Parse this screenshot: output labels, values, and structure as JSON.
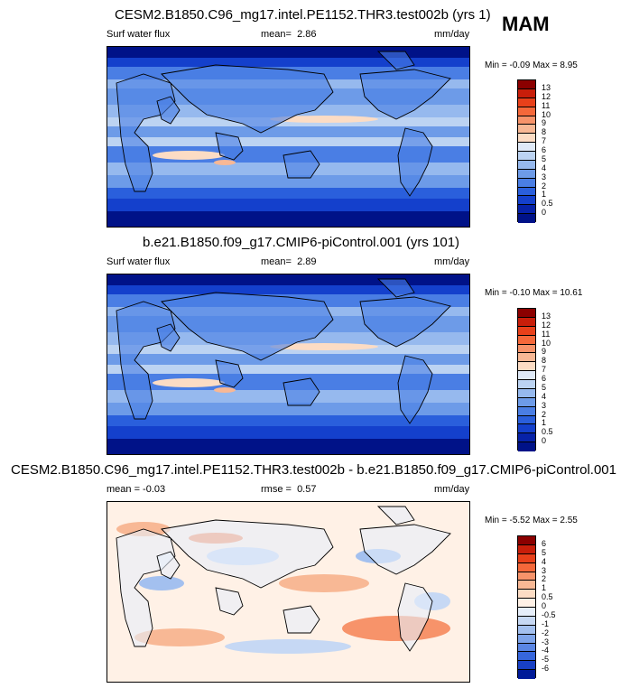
{
  "season": "MAM",
  "panels": [
    {
      "title": "CESM2.B1850.C96_mg17.intel.PE1152.THR3.test002b (yrs 1)",
      "left_label": "Surf water flux",
      "stat_label": "mean=",
      "stat_value": "2.86",
      "units": "mm/day",
      "minmax": "Min = -0.09 Max = 8.95",
      "colorbar": {
        "labels": [
          "13",
          "12",
          "11",
          "10",
          "9",
          "8",
          "7",
          "6",
          "5",
          "4",
          "3",
          "2",
          "1",
          "0.5",
          "0"
        ],
        "colors": [
          "#8b0000",
          "#c81e0a",
          "#e8401a",
          "#f5683a",
          "#f7936a",
          "#f8b895",
          "#fcdcc4",
          "#dfe9f7",
          "#bcd3f2",
          "#96b9ee",
          "#6d9be8",
          "#4a7ee4",
          "#2a5fdc",
          "#1440cc",
          "#0722a8",
          "#001288"
        ]
      },
      "map_style": "flux"
    },
    {
      "title": "b.e21.B1850.f09_g17.CMIP6-piControl.001 (yrs 101)",
      "left_label": "Surf water flux",
      "stat_label": "mean=",
      "stat_value": "2.89",
      "units": "mm/day",
      "minmax": "Min = -0.10 Max = 10.61",
      "colorbar": {
        "labels": [
          "13",
          "12",
          "11",
          "10",
          "9",
          "8",
          "7",
          "6",
          "5",
          "4",
          "3",
          "2",
          "1",
          "0.5",
          "0"
        ],
        "colors": [
          "#8b0000",
          "#c81e0a",
          "#e8401a",
          "#f5683a",
          "#f7936a",
          "#f8b895",
          "#fcdcc4",
          "#dfe9f7",
          "#bcd3f2",
          "#96b9ee",
          "#6d9be8",
          "#4a7ee4",
          "#2a5fdc",
          "#1440cc",
          "#0722a8",
          "#001288"
        ]
      },
      "map_style": "flux"
    },
    {
      "title": "CESM2.B1850.C96_mg17.intel.PE1152.THR3.test002b - b.e21.B1850.f09_g17.CMIP6-piControl.001",
      "left_label": "mean =  -0.03",
      "stat_label": "rmse =",
      "stat_value": "0.57",
      "units": "mm/day",
      "minmax": "Min = -5.52 Max =  2.55",
      "colorbar": {
        "labels": [
          "6",
          "5",
          "4",
          "3",
          "2",
          "1",
          "0.5",
          "0",
          "-0.5",
          "-1",
          "-2",
          "-3",
          "-4",
          "-5",
          "-6"
        ],
        "colors": [
          "#8b0000",
          "#c81e0a",
          "#e8401a",
          "#f5683a",
          "#f7936a",
          "#f8b895",
          "#fcdcc4",
          "#fff1e6",
          "#e6eefa",
          "#c6d8f4",
          "#a3c0ef",
          "#7ea4ea",
          "#5a86e4",
          "#3666dc",
          "#1840c4",
          "#001a98"
        ]
      },
      "map_style": "diff"
    }
  ],
  "chart_data": [
    {
      "type": "heatmap",
      "title": "CESM2.B1850.C96_mg17.intel.PE1152.THR3.test002b (yrs 1)",
      "variable": "Surf water flux",
      "units": "mm/day",
      "mean": 2.86,
      "min": -0.09,
      "max": 8.95,
      "levels": [
        0,
        0.5,
        1,
        2,
        3,
        4,
        5,
        6,
        7,
        8,
        9,
        10,
        11,
        12,
        13
      ]
    },
    {
      "type": "heatmap",
      "title": "b.e21.B1850.f09_g17.CMIP6-piControl.001 (yrs 101)",
      "variable": "Surf water flux",
      "units": "mm/day",
      "mean": 2.89,
      "min": -0.1,
      "max": 10.61,
      "levels": [
        0,
        0.5,
        1,
        2,
        3,
        4,
        5,
        6,
        7,
        8,
        9,
        10,
        11,
        12,
        13
      ]
    },
    {
      "type": "heatmap",
      "title": "CESM2.B1850.C96_mg17.intel.PE1152.THR3.test002b - b.e21.B1850.f09_g17.CMIP6-piControl.001",
      "units": "mm/day",
      "mean": -0.03,
      "rmse": 0.57,
      "min": -5.52,
      "max": 2.55,
      "levels": [
        -6,
        -5,
        -4,
        -3,
        -2,
        -1,
        -0.5,
        0,
        0.5,
        1,
        2,
        3,
        4,
        5,
        6
      ]
    }
  ]
}
